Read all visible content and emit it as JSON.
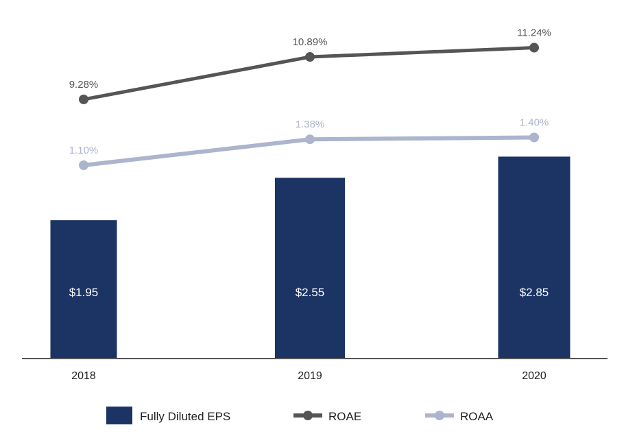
{
  "chart_data": {
    "type": "bar",
    "categories": [
      "2018",
      "2019",
      "2020"
    ],
    "series": [
      {
        "name": "Fully Diluted EPS",
        "type": "bar",
        "values": [
          1.95,
          2.55,
          2.85
        ],
        "labels": [
          "$1.95",
          "$2.55",
          "$2.85"
        ],
        "color": "#1b3464"
      },
      {
        "name": "ROAE",
        "type": "line",
        "values": [
          9.28,
          10.89,
          11.24
        ],
        "labels": [
          "9.28%",
          "10.89%",
          "11.24%"
        ],
        "color": "#555555"
      },
      {
        "name": "ROAA",
        "type": "line",
        "values": [
          1.1,
          1.38,
          1.4
        ],
        "labels": [
          "1.10%",
          "1.38%",
          "1.40%"
        ],
        "color": "#adb4cd"
      }
    ],
    "legend": {
      "placement": "bottom",
      "items": [
        "Fully Diluted EPS",
        "ROAE",
        "ROAA"
      ]
    },
    "axis_color": "#555555",
    "grid": false
  }
}
